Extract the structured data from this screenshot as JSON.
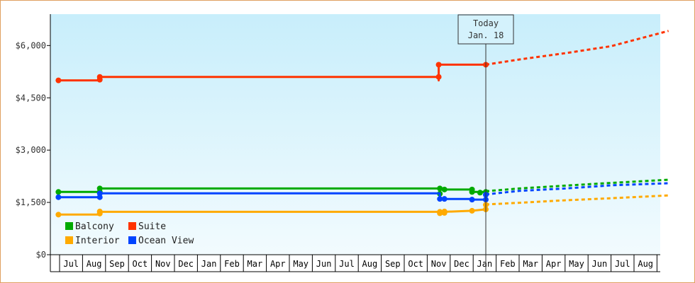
{
  "chart_data": {
    "type": "line",
    "title": "",
    "xlabel": "",
    "ylabel": "",
    "ylim": [
      0,
      6900
    ],
    "y_ticks": [
      {
        "value": 0,
        "label": "$0"
      },
      {
        "value": 1500,
        "label": "$1,500"
      },
      {
        "value": 3000,
        "label": "$3,000"
      },
      {
        "value": 4500,
        "label": "$4,500"
      },
      {
        "value": 6000,
        "label": "$6,000"
      }
    ],
    "x_months": [
      "Jul",
      "Aug",
      "Sep",
      "Oct",
      "Nov",
      "Dec",
      "Jan",
      "Feb",
      "Mar",
      "Apr",
      "May",
      "Jun",
      "Jul",
      "Aug",
      "Sep",
      "Oct",
      "Nov",
      "Dec",
      "Jan",
      "Feb",
      "Mar",
      "Apr",
      "May",
      "Jun",
      "Jul",
      "Aug"
    ],
    "x_range_months": [
      -0.05,
      26.5
    ],
    "today": {
      "line1": "Today",
      "line2": "Jan. 18",
      "x": 18.55
    },
    "grid": false,
    "legend_placement": "bottom-left",
    "series": [
      {
        "name": "Suite",
        "color": "#ff3300",
        "points": [
          [
            -0.05,
            5000
          ],
          [
            1.75,
            5000
          ],
          [
            1.75,
            5100
          ],
          [
            16.5,
            5100
          ],
          [
            16.5,
            5000
          ],
          [
            16.5,
            5100
          ],
          [
            16.5,
            5100
          ],
          [
            16.5,
            5450
          ],
          [
            18.55,
            5450
          ]
        ],
        "markers": [
          [
            -0.05,
            5000
          ],
          [
            1.75,
            5020
          ],
          [
            1.75,
            5100
          ],
          [
            16.5,
            5100
          ],
          [
            16.5,
            5450
          ],
          [
            18.55,
            5450
          ]
        ],
        "projection": [
          [
            18.55,
            5450
          ],
          [
            20,
            5600
          ],
          [
            22,
            5780
          ],
          [
            24,
            5980
          ],
          [
            26.5,
            6420
          ]
        ]
      },
      {
        "name": "Balcony",
        "color": "#00aa00",
        "points": [
          [
            -0.05,
            1800
          ],
          [
            1.75,
            1800
          ],
          [
            1.75,
            1900
          ],
          [
            16.55,
            1900
          ],
          [
            16.55,
            1750
          ],
          [
            16.55,
            1900
          ],
          [
            16.75,
            1900
          ],
          [
            16.75,
            1870
          ],
          [
            17.95,
            1870
          ],
          [
            17.95,
            1800
          ],
          [
            18.55,
            1800
          ]
        ],
        "markers": [
          [
            -0.05,
            1800
          ],
          [
            1.75,
            1800
          ],
          [
            1.75,
            1900
          ],
          [
            16.55,
            1900
          ],
          [
            16.55,
            1750
          ],
          [
            16.75,
            1870
          ],
          [
            17.95,
            1870
          ],
          [
            17.95,
            1800
          ],
          [
            18.3,
            1780
          ],
          [
            18.55,
            1800
          ]
        ],
        "projection": [
          [
            18.55,
            1820
          ],
          [
            20,
            1900
          ],
          [
            22,
            1980
          ],
          [
            24,
            2060
          ],
          [
            26.5,
            2150
          ]
        ]
      },
      {
        "name": "Ocean View",
        "color": "#0044ff",
        "points": [
          [
            -0.05,
            1650
          ],
          [
            1.75,
            1650
          ],
          [
            1.75,
            1760
          ],
          [
            16.55,
            1760
          ],
          [
            16.55,
            1600
          ],
          [
            17.95,
            1600
          ],
          [
            17.95,
            1580
          ],
          [
            18.55,
            1580
          ]
        ],
        "markers": [
          [
            -0.05,
            1650
          ],
          [
            1.75,
            1650
          ],
          [
            1.75,
            1760
          ],
          [
            16.55,
            1600
          ],
          [
            16.75,
            1600
          ],
          [
            17.95,
            1580
          ],
          [
            18.55,
            1580
          ],
          [
            18.55,
            1720
          ]
        ],
        "projection": [
          [
            18.55,
            1730
          ],
          [
            20,
            1830
          ],
          [
            22,
            1900
          ],
          [
            24,
            1990
          ],
          [
            26.5,
            2050
          ]
        ]
      },
      {
        "name": "Interior",
        "color": "#ffaa00",
        "points": [
          [
            -0.05,
            1150
          ],
          [
            1.75,
            1150
          ],
          [
            1.75,
            1230
          ],
          [
            16.55,
            1230
          ],
          [
            16.55,
            1190
          ],
          [
            16.55,
            1230
          ],
          [
            16.75,
            1230
          ],
          [
            17.95,
            1260
          ],
          [
            18.55,
            1300
          ],
          [
            18.55,
            1430
          ]
        ],
        "markers": [
          [
            -0.05,
            1150
          ],
          [
            1.75,
            1180
          ],
          [
            1.75,
            1240
          ],
          [
            16.55,
            1230
          ],
          [
            16.55,
            1190
          ],
          [
            16.75,
            1200
          ],
          [
            16.75,
            1240
          ],
          [
            17.95,
            1260
          ],
          [
            18.55,
            1300
          ],
          [
            18.55,
            1430
          ]
        ],
        "projection": [
          [
            18.55,
            1440
          ],
          [
            20,
            1490
          ],
          [
            22,
            1560
          ],
          [
            24,
            1620
          ],
          [
            26.5,
            1700
          ]
        ]
      }
    ],
    "legend": [
      {
        "name": "Balcony",
        "color": "#00aa00"
      },
      {
        "name": "Suite",
        "color": "#ff3300"
      },
      {
        "name": "Interior",
        "color": "#ffaa00"
      },
      {
        "name": "Ocean View",
        "color": "#0044ff"
      }
    ]
  }
}
